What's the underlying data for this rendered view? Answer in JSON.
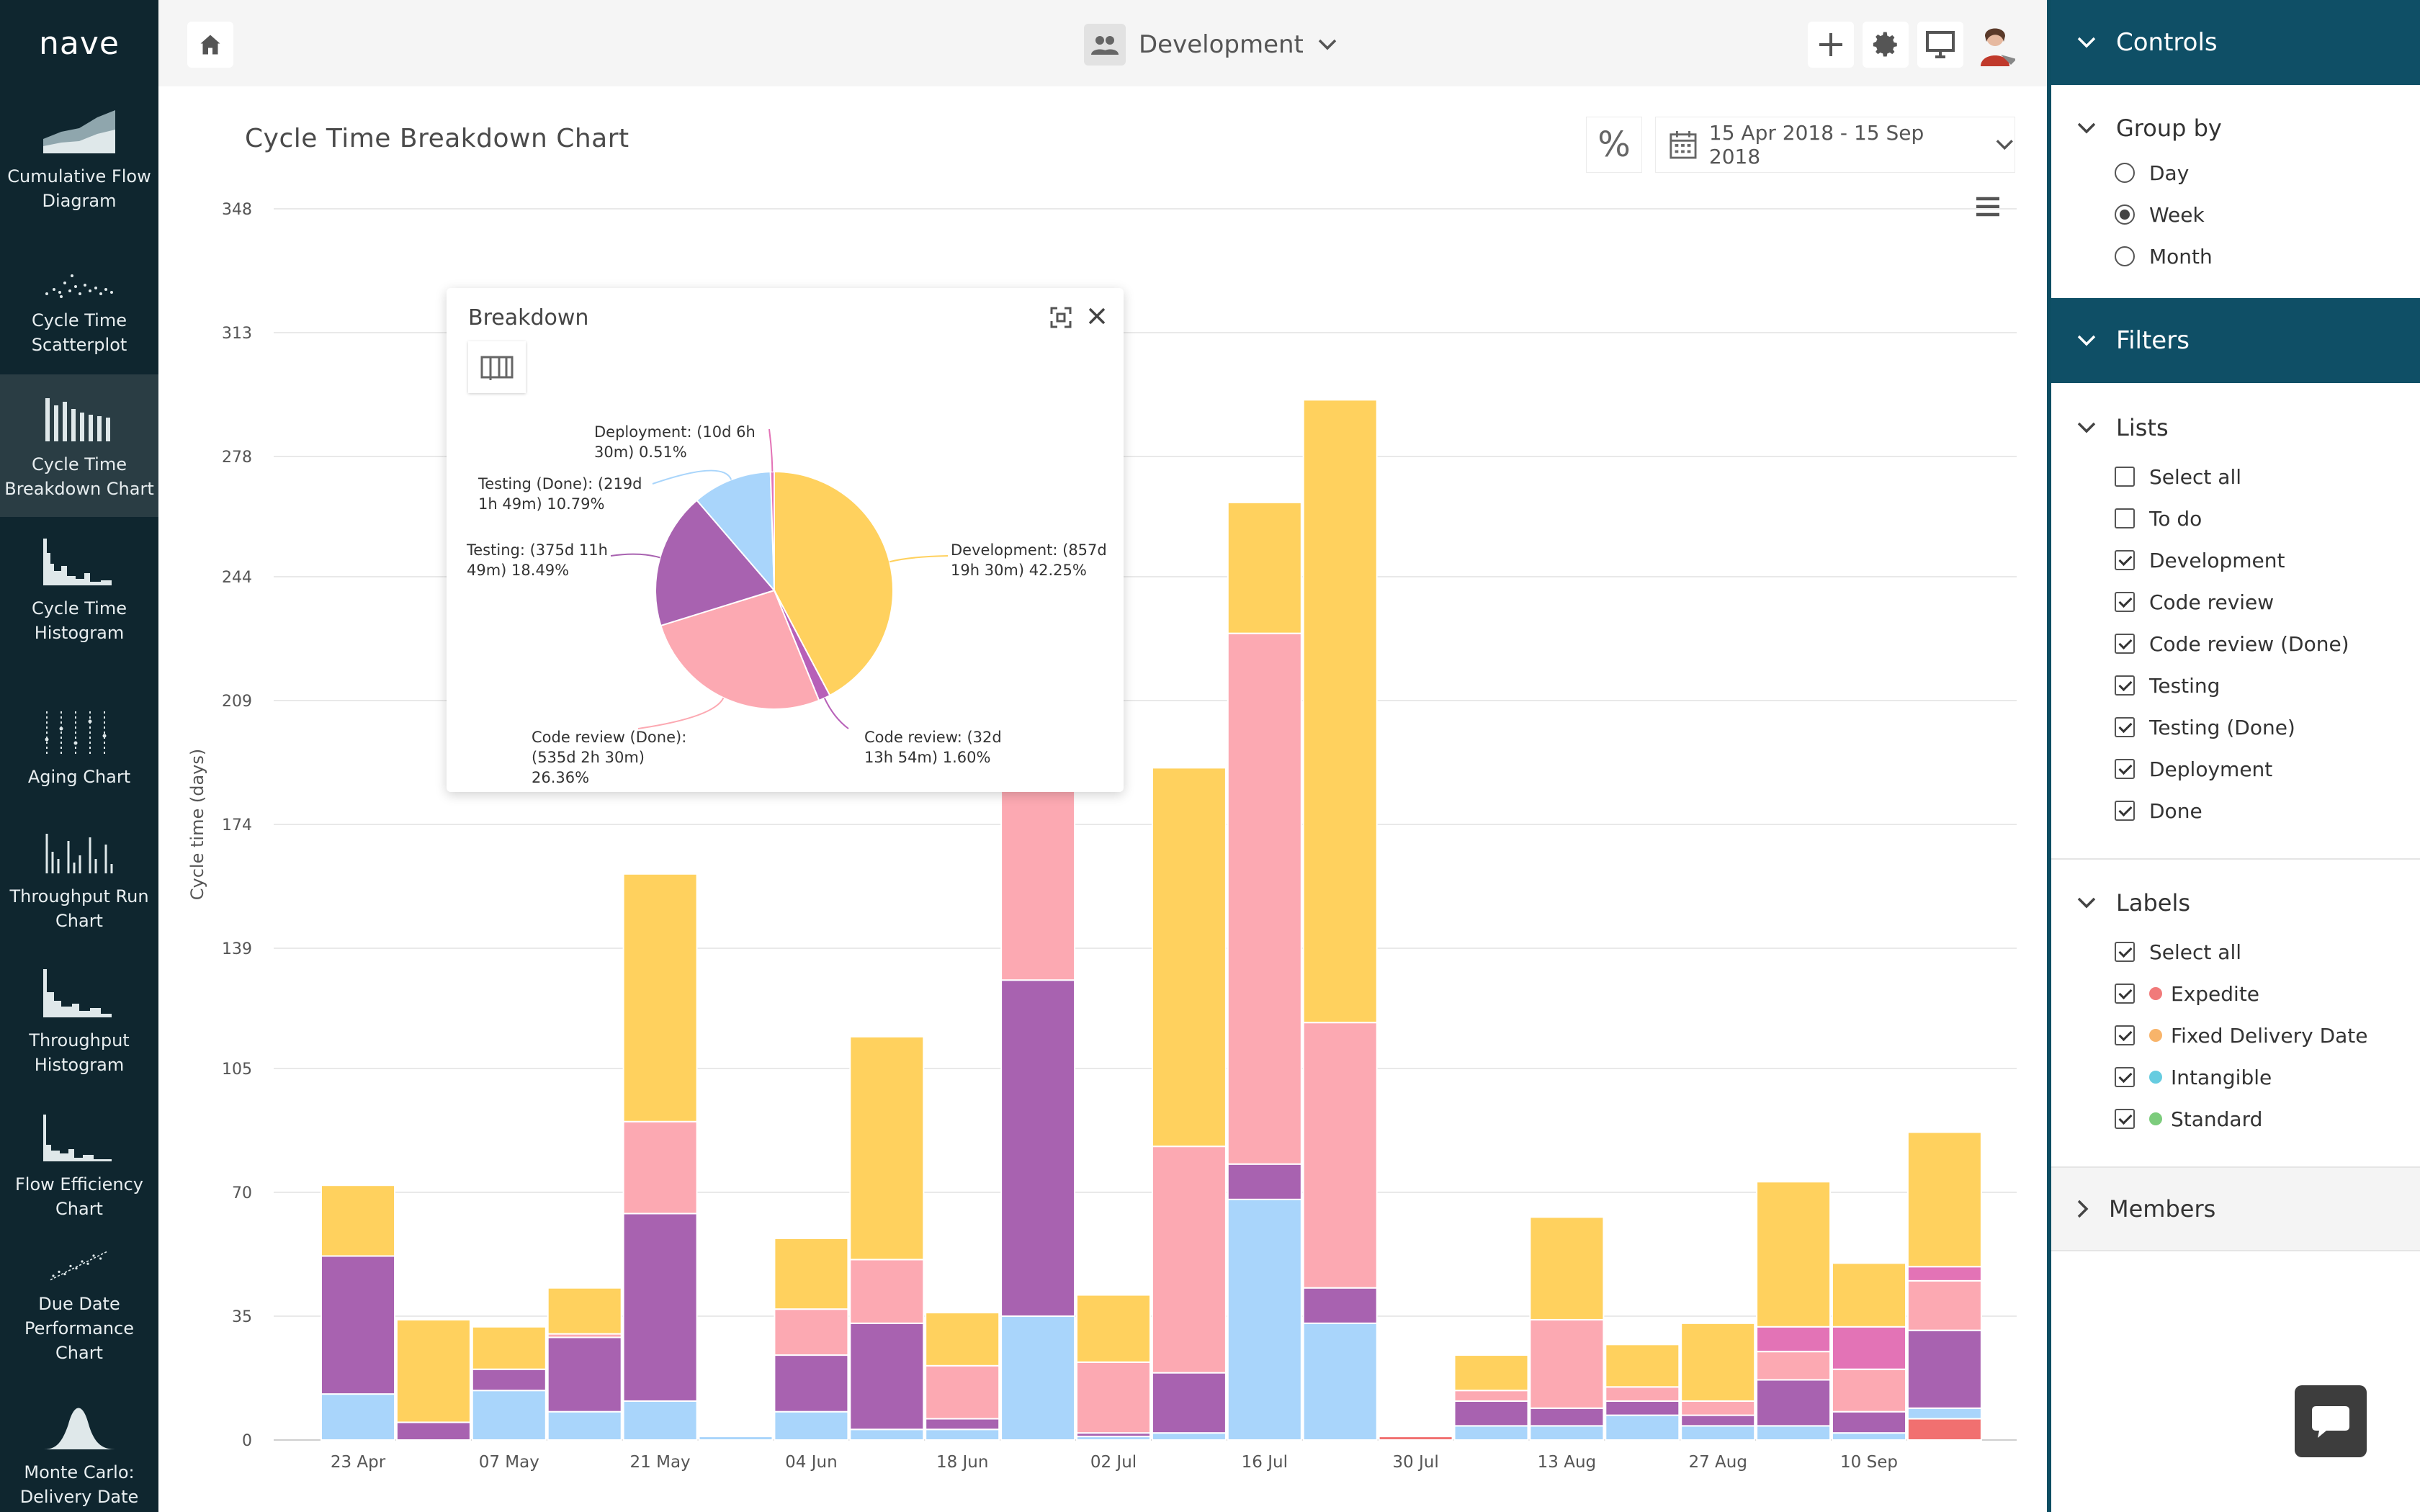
{
  "app": {
    "logo": "nave"
  },
  "sidebar": {
    "items": [
      {
        "label": "Cumulative Flow\nDiagram",
        "icon": "cumulative-flow-icon"
      },
      {
        "label": "Cycle Time\nScatterplot",
        "icon": "scatterplot-icon"
      },
      {
        "label": "Cycle Time\nBreakdown Chart",
        "icon": "breakdown-chart-icon",
        "active": true
      },
      {
        "label": "Cycle Time\nHistogram",
        "icon": "histogram-icon"
      },
      {
        "label": "Aging Chart",
        "icon": "aging-chart-icon"
      },
      {
        "label": "Throughput Run\nChart",
        "icon": "throughput-run-icon"
      },
      {
        "label": "Throughput\nHistogram",
        "icon": "throughput-histogram-icon"
      },
      {
        "label": "Flow Efficiency\nChart",
        "icon": "flow-efficiency-icon"
      },
      {
        "label": "Due Date\nPerformance\nChart",
        "icon": "due-date-icon"
      },
      {
        "label": "Monte Carlo:\nDelivery Date",
        "icon": "monte-carlo-icon"
      }
    ]
  },
  "topbar": {
    "team": "Development"
  },
  "main": {
    "title": "Cycle Time Breakdown Chart",
    "percent_symbol": "%",
    "date_range": "15 Apr 2018 - 15 Sep 2018"
  },
  "colors": {
    "Testing (Done)": "#a9d5fb",
    "Testing": "#a862b0",
    "Code review (Done)": "#fca9b2",
    "Code review": "#b760b8",
    "Development": "#ffd15e",
    "Deployment": "#e373b6",
    "Expedite": "#f17070"
  },
  "chart_data": {
    "type": "bar",
    "stacked": true,
    "ylabel": "Cycle time (days)",
    "yticks": [
      "0",
      "35",
      "70",
      "105",
      "139",
      "174",
      "209",
      "244",
      "278",
      "313",
      "348"
    ],
    "ylim": [
      0,
      348
    ],
    "xtick_labels": [
      "23 Apr",
      "07 May",
      "21 May",
      "04 Jun",
      "18 Jun",
      "02 Jul",
      "16 Jul",
      "30 Jul",
      "13 Aug",
      "27 Aug",
      "10 Sep"
    ],
    "bars": [
      {
        "segments": [
          [
            "Testing (Done)",
            13
          ],
          [
            "Testing",
            39
          ],
          [
            "Development",
            20
          ]
        ]
      },
      {
        "segments": [
          [
            "Testing",
            5
          ],
          [
            "Development",
            29
          ]
        ]
      },
      {
        "segments": [
          [
            "Testing (Done)",
            14
          ],
          [
            "Testing",
            6
          ],
          [
            "Development",
            12
          ]
        ]
      },
      {
        "segments": [
          [
            "Testing (Done)",
            8
          ],
          [
            "Testing",
            21
          ],
          [
            "Code review (Done)",
            1
          ],
          [
            "Development",
            13
          ]
        ]
      },
      {
        "segments": [
          [
            "Testing (Done)",
            11
          ],
          [
            "Testing",
            53
          ],
          [
            "Code review (Done)",
            26
          ],
          [
            "Development",
            70
          ]
        ]
      },
      {
        "segments": [
          [
            "Testing (Done)",
            1
          ]
        ]
      },
      {
        "segments": [
          [
            "Testing (Done)",
            8
          ],
          [
            "Testing",
            16
          ],
          [
            "Code review (Done)",
            13
          ],
          [
            "Development",
            20
          ]
        ]
      },
      {
        "segments": [
          [
            "Testing (Done)",
            3
          ],
          [
            "Testing",
            30
          ],
          [
            "Code review (Done)",
            18
          ],
          [
            "Development",
            63
          ]
        ]
      },
      {
        "segments": [
          [
            "Testing (Done)",
            3
          ],
          [
            "Testing",
            3
          ],
          [
            "Code review (Done)",
            15
          ],
          [
            "Development",
            15
          ]
        ]
      },
      {
        "segments": [
          [
            "Testing (Done)",
            35
          ],
          [
            "Testing",
            95
          ],
          [
            "Code review (Done)",
            84
          ],
          [
            "Development",
            106
          ]
        ]
      },
      {
        "segments": [
          [
            "Testing (Done)",
            1
          ],
          [
            "Testing",
            1
          ],
          [
            "Code review (Done)",
            20
          ],
          [
            "Development",
            19
          ]
        ]
      },
      {
        "segments": [
          [
            "Testing (Done)",
            2
          ],
          [
            "Testing",
            17
          ],
          [
            "Code review (Done)",
            64
          ],
          [
            "Development",
            107
          ]
        ]
      },
      {
        "segments": [
          [
            "Testing (Done)",
            68
          ],
          [
            "Testing",
            10
          ],
          [
            "Code review (Done)",
            150
          ],
          [
            "Development",
            37
          ]
        ]
      },
      {
        "segments": [
          [
            "Testing (Done)",
            33
          ],
          [
            "Testing",
            10
          ],
          [
            "Code review (Done)",
            75
          ],
          [
            "Development",
            176
          ]
        ]
      },
      {
        "segments": [
          [
            "Expedite",
            1
          ]
        ]
      },
      {
        "segments": [
          [
            "Testing (Done)",
            4
          ],
          [
            "Testing",
            7
          ],
          [
            "Code review (Done)",
            3
          ],
          [
            "Development",
            10
          ]
        ]
      },
      {
        "segments": [
          [
            "Testing (Done)",
            4
          ],
          [
            "Testing",
            5
          ],
          [
            "Code review (Done)",
            25
          ],
          [
            "Development",
            29
          ]
        ]
      },
      {
        "segments": [
          [
            "Testing (Done)",
            7
          ],
          [
            "Testing",
            4
          ],
          [
            "Code review (Done)",
            4
          ],
          [
            "Development",
            12
          ]
        ]
      },
      {
        "segments": [
          [
            "Testing (Done)",
            4
          ],
          [
            "Testing",
            3
          ],
          [
            "Code review (Done)",
            4
          ],
          [
            "Development",
            22
          ]
        ]
      },
      {
        "segments": [
          [
            "Testing (Done)",
            4
          ],
          [
            "Testing",
            13
          ],
          [
            "Code review (Done)",
            8
          ],
          [
            "Deployment",
            7
          ],
          [
            "Development",
            41
          ]
        ]
      },
      {
        "segments": [
          [
            "Testing (Done)",
            2
          ],
          [
            "Testing",
            6
          ],
          [
            "Code review (Done)",
            12
          ],
          [
            "Deployment",
            12
          ],
          [
            "Development",
            18
          ]
        ]
      },
      {
        "segments": [
          [
            "Expedite",
            6
          ],
          [
            "Testing (Done)",
            3
          ],
          [
            "Testing",
            22
          ],
          [
            "Code review (Done)",
            14
          ],
          [
            "Deployment",
            4
          ],
          [
            "Development",
            38
          ]
        ]
      }
    ]
  },
  "popup": {
    "title": "Breakdown",
    "pie": [
      {
        "name": "Development",
        "percent": 42.25,
        "label": "Development: (857d\n19h 30m) 42.25%"
      },
      {
        "name": "Code review",
        "percent": 1.6,
        "label": "Code review: (32d\n13h 54m) 1.60%"
      },
      {
        "name": "Code review (Done)",
        "percent": 26.36,
        "label": "Code review (Done):\n(535d 2h 30m)\n26.36%"
      },
      {
        "name": "Testing",
        "percent": 18.49,
        "label": "Testing: (375d 11h\n49m) 18.49%"
      },
      {
        "name": "Testing (Done)",
        "percent": 10.79,
        "label": "Testing (Done): (219d\n1h 49m) 10.79%"
      },
      {
        "name": "Deployment",
        "percent": 0.51,
        "label": "Deployment: (10d 6h\n30m) 0.51%"
      }
    ]
  },
  "controls": {
    "header": "Controls",
    "group_by": {
      "title": "Group by",
      "options": [
        "Day",
        "Week",
        "Month"
      ],
      "selected": "Week"
    }
  },
  "filters": {
    "header": "Filters",
    "lists": {
      "title": "Lists",
      "items": [
        {
          "label": "Select all",
          "checked": false
        },
        {
          "label": "To do",
          "checked": false
        },
        {
          "label": "Development",
          "checked": true
        },
        {
          "label": "Code review",
          "checked": true
        },
        {
          "label": "Code review (Done)",
          "checked": true
        },
        {
          "label": "Testing",
          "checked": true
        },
        {
          "label": "Testing (Done)",
          "checked": true
        },
        {
          "label": "Deployment",
          "checked": true
        },
        {
          "label": "Done",
          "checked": true
        }
      ]
    },
    "labels": {
      "title": "Labels",
      "items": [
        {
          "label": "Select all",
          "checked": true,
          "color": ""
        },
        {
          "label": "Expedite",
          "checked": true,
          "color": "#f17a7a"
        },
        {
          "label": "Fixed Delivery Date",
          "checked": true,
          "color": "#f8b46a"
        },
        {
          "label": "Intangible",
          "checked": true,
          "color": "#66cce0"
        },
        {
          "label": "Standard",
          "checked": true,
          "color": "#7ccc7c"
        }
      ]
    },
    "members": {
      "title": "Members"
    }
  }
}
